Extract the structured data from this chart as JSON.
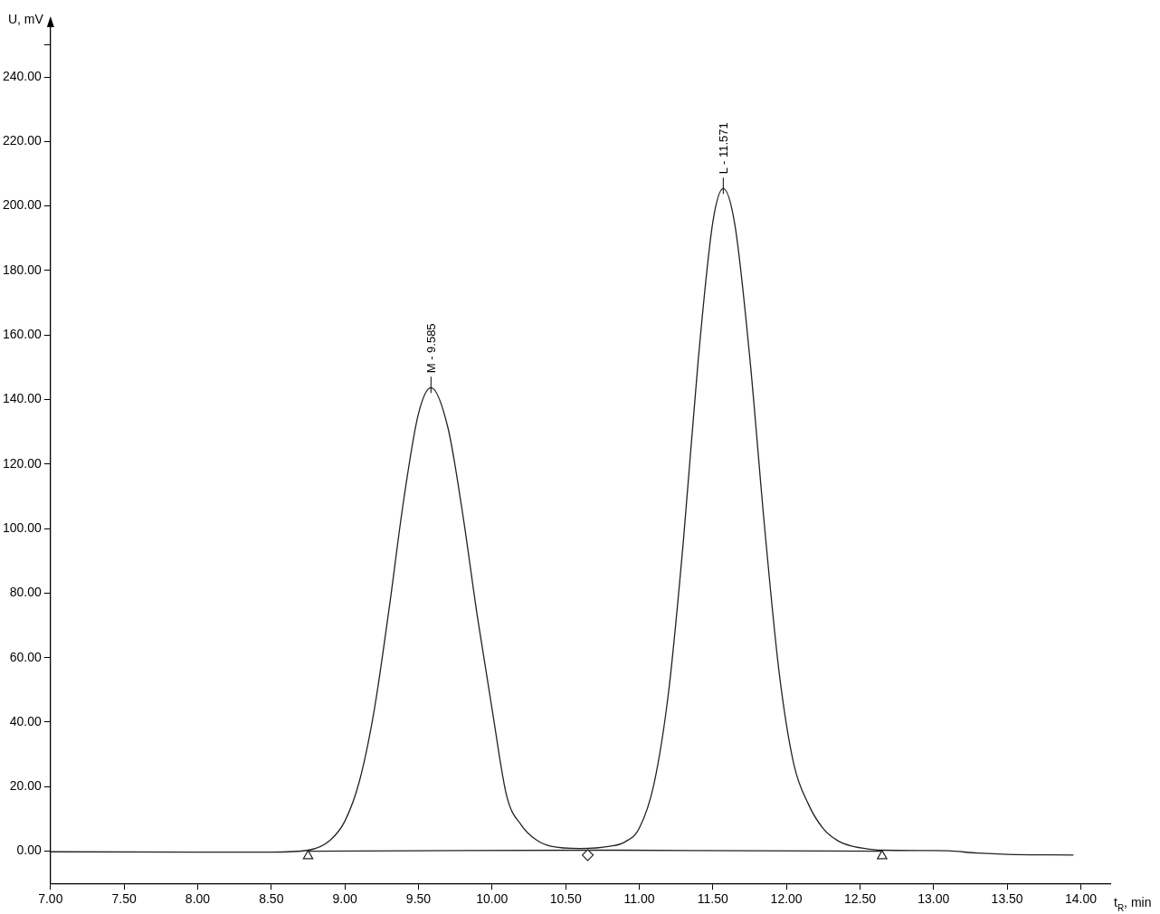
{
  "chart_data": {
    "type": "line",
    "xlabel": "t$_{R}$, min",
    "ylabel": "U, mV",
    "xlim": [
      7,
      14.2
    ],
    "ylim": [
      -10,
      256
    ],
    "xticks": [
      {
        "value": 7,
        "label": "7.00"
      },
      {
        "value": 7.5,
        "label": "7.50"
      },
      {
        "value": 8,
        "label": "8.00"
      },
      {
        "value": 8.5,
        "label": "8.50"
      },
      {
        "value": 9,
        "label": "9.00"
      },
      {
        "value": 9.5,
        "label": "9.50"
      },
      {
        "value": 10,
        "label": "10.00"
      },
      {
        "value": 10.5,
        "label": "10.50"
      },
      {
        "value": 11,
        "label": "11.00"
      },
      {
        "value": 11.5,
        "label": "11.50"
      },
      {
        "value": 12,
        "label": "12.00"
      },
      {
        "value": 12.5,
        "label": "12.50"
      },
      {
        "value": 13,
        "label": "13.00"
      },
      {
        "value": 13.5,
        "label": "13.50"
      },
      {
        "value": 14,
        "label": "14.00"
      }
    ],
    "yticks": [
      {
        "value": 0,
        "label": "0.00"
      },
      {
        "value": 20,
        "label": "20.00"
      },
      {
        "value": 40,
        "label": "40.00"
      },
      {
        "value": 60,
        "label": "60.00"
      },
      {
        "value": 80,
        "label": "80.00"
      },
      {
        "value": 100,
        "label": "100.00"
      },
      {
        "value": 120,
        "label": "120.00"
      },
      {
        "value": 140,
        "label": "140.00"
      },
      {
        "value": 160,
        "label": "160.00"
      },
      {
        "value": 180,
        "label": "180.00"
      },
      {
        "value": 200,
        "label": "200.00"
      },
      {
        "value": 220,
        "label": "220.00"
      },
      {
        "value": 240,
        "label": "240.00"
      },
      {
        "value": 250,
        "label": null
      }
    ],
    "grid": false,
    "legend": false,
    "line_style": "solid",
    "series": [
      {
        "color": "#222222",
        "marker": "none",
        "x": [
          7,
          8,
          8.5,
          8.75,
          8.9,
          9,
          9.1,
          9.2,
          9.3,
          9.4,
          9.5,
          9.585,
          9.7,
          9.8,
          9.9,
          10,
          10.1,
          10.2,
          10.3,
          10.4,
          10.6,
          10.8,
          10.9,
          11,
          11.1,
          11.2,
          11.3,
          11.4,
          11.5,
          11.571,
          11.65,
          11.75,
          11.85,
          11.95,
          12.05,
          12.15,
          12.25,
          12.35,
          12.45,
          12.55,
          12.65,
          13,
          13.1,
          13.3,
          13.5,
          13.95
        ],
        "values": [
          -0.2,
          -0.3,
          -0.3,
          0.3,
          3.4,
          9.3,
          21.9,
          43.9,
          75,
          109,
          135.6,
          143.7,
          131.3,
          104.7,
          72.8,
          44.1,
          17,
          8,
          3.5,
          1.5,
          0.8,
          1.5,
          2.8,
          7.1,
          20.8,
          49.6,
          96.2,
          151.9,
          195,
          205.4,
          194.1,
          153.5,
          101.3,
          55.6,
          27,
          14.5,
          7,
          3.2,
          1.5,
          0.7,
          0.3,
          0.2,
          0.1,
          -0.6,
          -1,
          -1.2
        ]
      },
      {
        "type": "line",
        "color": "#222222",
        "marker": "none",
        "x": [
          8.75,
          10.65,
          12.65
        ],
        "values": [
          0,
          0.3,
          0
        ]
      },
      {
        "type": "scatter",
        "color": "#222222",
        "marker": "triangle",
        "x": [
          8.75,
          12.65
        ],
        "values": [
          -1.5,
          -1.5
        ]
      },
      {
        "type": "scatter",
        "color": "#222222",
        "marker": "diamond",
        "x": [
          10.65
        ],
        "values": [
          -1.2
        ]
      }
    ],
    "annotations": [
      {
        "text": "M - 9.585",
        "x": 9.585,
        "y": 143.7
      },
      {
        "text": "L - 11.571",
        "x": 11.571,
        "y": 205.4
      }
    ]
  }
}
